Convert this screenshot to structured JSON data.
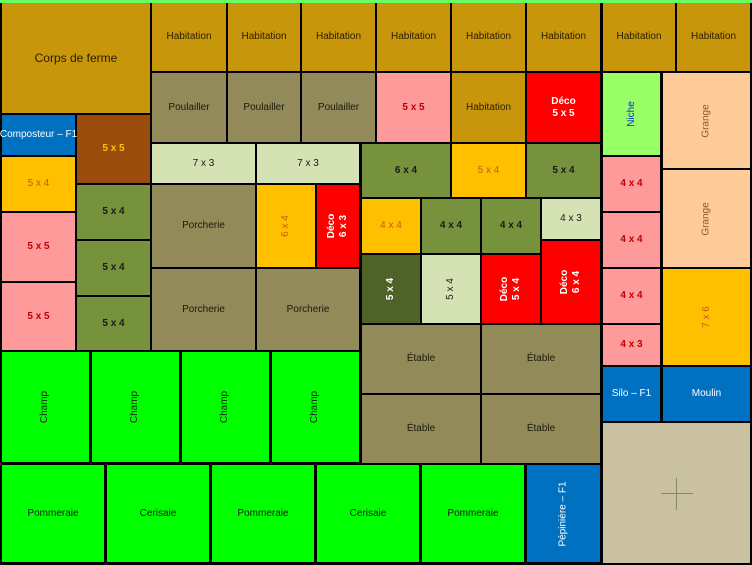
{
  "cells": [
    {
      "label": "Corps de ferme"
    },
    {
      "label": "Habitation"
    },
    {
      "label": "Habitation"
    },
    {
      "label": "Habitation"
    },
    {
      "label": "Habitation"
    },
    {
      "label": "Habitation"
    },
    {
      "label": "Habitation"
    },
    {
      "label": "Habitation"
    },
    {
      "label": "Habitation"
    },
    {
      "label": "Poulailler"
    },
    {
      "label": "Poulailler"
    },
    {
      "label": "Poulailler"
    },
    {
      "label": "5 x 5"
    },
    {
      "label": "Habitation"
    },
    {
      "label": "Déco",
      "sub": "5 x 5"
    },
    {
      "label": "Niche"
    },
    {
      "label": "Grange"
    },
    {
      "label": "Composteur – F1"
    },
    {
      "label": "5 x 5"
    },
    {
      "label": "5 x 4"
    },
    {
      "label": "5 x 5"
    },
    {
      "label": "5 x 5"
    },
    {
      "label": "5 x 4"
    },
    {
      "label": "5 x 4"
    },
    {
      "label": "5 x 4"
    },
    {
      "label": "7 x 3"
    },
    {
      "label": "7 x 3"
    },
    {
      "label": "6 x 4"
    },
    {
      "label": "5 x 4"
    },
    {
      "label": "5 x 4"
    },
    {
      "label": "Porcherie"
    },
    {
      "label": "6 x 4"
    },
    {
      "label": "Déco",
      "sub": "6 x 3"
    },
    {
      "label": "4 x 4"
    },
    {
      "label": "4 x 4"
    },
    {
      "label": "4 x 4"
    },
    {
      "label": "4 x 3"
    },
    {
      "label": "Porcherie"
    },
    {
      "label": "Porcherie"
    },
    {
      "label": "5 x 4"
    },
    {
      "label": "5 x 4"
    },
    {
      "label": "Déco",
      "sub": "5 x 4"
    },
    {
      "label": "Déco",
      "sub": "6 x 4"
    },
    {
      "label": "Étable"
    },
    {
      "label": "Étable"
    },
    {
      "label": "Étable"
    },
    {
      "label": "Étable"
    },
    {
      "label": "Grange"
    },
    {
      "label": "4 x 4"
    },
    {
      "label": "4 x 4"
    },
    {
      "label": "4 x 4"
    },
    {
      "label": "4 x 3"
    },
    {
      "label": "7 x 6"
    },
    {
      "label": "Silo – F1"
    },
    {
      "label": "Moulin"
    },
    {
      "label": "Champ"
    },
    {
      "label": "Champ"
    },
    {
      "label": "Champ"
    },
    {
      "label": "Champ"
    },
    {
      "label": "Pommeraie"
    },
    {
      "label": "Cerisaie"
    },
    {
      "label": "Pommeraie"
    },
    {
      "label": "Cerisaie"
    },
    {
      "label": "Pommeraie"
    },
    {
      "label": "Pépinière – F1"
    }
  ]
}
